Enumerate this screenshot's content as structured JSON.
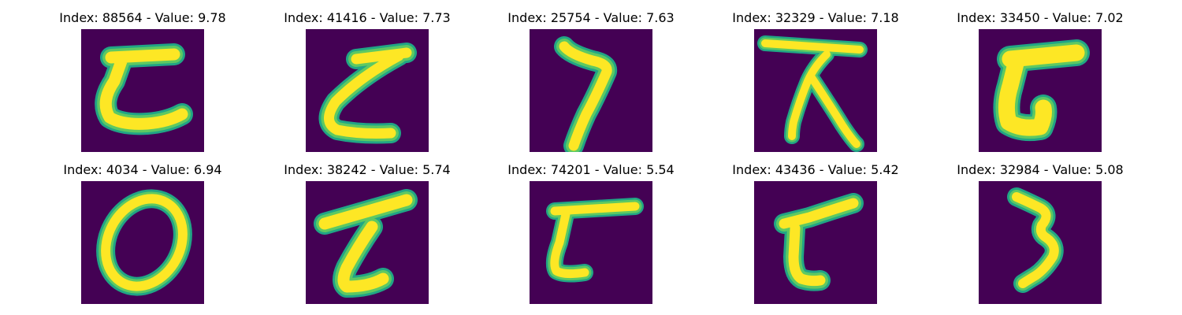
{
  "colors": {
    "background": "#ffffff",
    "image_bg": "#440154",
    "stroke_core": "#fde725",
    "stroke_mid": "#5ec962",
    "stroke_edge": "#21a585"
  },
  "panels": [
    {
      "title": "Index: 88564 - Value: 9.78",
      "index": 88564,
      "value": 9.78
    },
    {
      "title": "Index: 41416 - Value: 7.73",
      "index": 41416,
      "value": 7.73
    },
    {
      "title": "Index: 25754 - Value: 7.63",
      "index": 25754,
      "value": 7.63
    },
    {
      "title": "Index: 32329 - Value: 7.18",
      "index": 32329,
      "value": 7.18
    },
    {
      "title": "Index: 33450 - Value: 7.02",
      "index": 33450,
      "value": 7.02
    },
    {
      "title": "Index: 4034 - Value: 6.94",
      "index": 4034,
      "value": 6.94
    },
    {
      "title": "Index: 38242 - Value: 5.74",
      "index": 38242,
      "value": 5.74
    },
    {
      "title": "Index: 74201 - Value: 5.54",
      "index": 74201,
      "value": 5.54
    },
    {
      "title": "Index: 43436 - Value: 5.42",
      "index": 43436,
      "value": 5.42
    },
    {
      "title": "Index: 32984 - Value: 5.08",
      "index": 32984,
      "value": 5.08
    }
  ]
}
